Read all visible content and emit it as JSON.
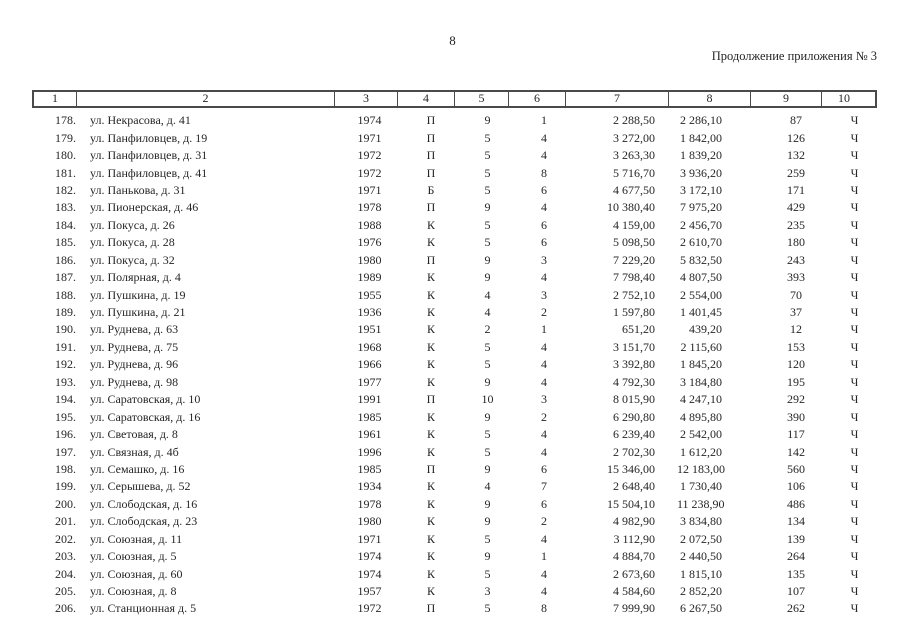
{
  "page": {
    "number": "8",
    "caption": "Продолжение приложения № 3"
  },
  "table": {
    "column_headers": [
      "1",
      "2",
      "3",
      "4",
      "5",
      "6",
      "7",
      "8",
      "9",
      "10"
    ],
    "rows": [
      [
        "178.",
        "ул. Некрасова, д. 41",
        "1974",
        "П",
        "9",
        "1",
        "2 288,50",
        "2 286,10",
        "87",
        "Ч"
      ],
      [
        "179.",
        "ул. Панфиловцев, д. 19",
        "1971",
        "П",
        "5",
        "4",
        "3 272,00",
        "1 842,00",
        "126",
        "Ч"
      ],
      [
        "180.",
        "ул. Панфиловцев, д. 31",
        "1972",
        "П",
        "5",
        "4",
        "3 263,30",
        "1 839,20",
        "132",
        "Ч"
      ],
      [
        "181.",
        "ул. Панфиловцев, д. 41",
        "1972",
        "П",
        "5",
        "8",
        "5 716,70",
        "3 936,20",
        "259",
        "Ч"
      ],
      [
        "182.",
        "ул. Панькова, д. 31",
        "1971",
        "Б",
        "5",
        "6",
        "4 677,50",
        "3 172,10",
        "171",
        "Ч"
      ],
      [
        "183.",
        "ул. Пионерская, д. 46",
        "1978",
        "П",
        "9",
        "4",
        "10 380,40",
        "7 975,20",
        "429",
        "Ч"
      ],
      [
        "184.",
        "ул. Покуса, д. 26",
        "1988",
        "К",
        "5",
        "6",
        "4 159,00",
        "2 456,70",
        "235",
        "Ч"
      ],
      [
        "185.",
        "ул. Покуса, д. 28",
        "1976",
        "К",
        "5",
        "6",
        "5 098,50",
        "2 610,70",
        "180",
        "Ч"
      ],
      [
        "186.",
        "ул. Покуса, д. 32",
        "1980",
        "П",
        "9",
        "3",
        "7 229,20",
        "5 832,50",
        "243",
        "Ч"
      ],
      [
        "187.",
        "ул. Полярная, д. 4",
        "1989",
        "К",
        "9",
        "4",
        "7 798,40",
        "4 807,50",
        "393",
        "Ч"
      ],
      [
        "188.",
        "ул. Пушкина, д. 19",
        "1955",
        "К",
        "4",
        "3",
        "2 752,10",
        "2 554,00",
        "70",
        "Ч"
      ],
      [
        "189.",
        "ул. Пушкина, д. 21",
        "1936",
        "К",
        "4",
        "2",
        "1 597,80",
        "1 401,45",
        "37",
        "Ч"
      ],
      [
        "190.",
        "ул. Руднева, д. 63",
        "1951",
        "К",
        "2",
        "1",
        "651,20",
        "439,20",
        "12",
        "Ч"
      ],
      [
        "191.",
        "ул. Руднева, д. 75",
        "1968",
        "К",
        "5",
        "4",
        "3 151,70",
        "2 115,60",
        "153",
        "Ч"
      ],
      [
        "192.",
        "ул. Руднева, д. 96",
        "1966",
        "К",
        "5",
        "4",
        "3 392,80",
        "1 845,20",
        "120",
        "Ч"
      ],
      [
        "193.",
        "ул. Руднева, д. 98",
        "1977",
        "К",
        "9",
        "4",
        "4 792,30",
        "3 184,80",
        "195",
        "Ч"
      ],
      [
        "194.",
        "ул. Саратовская, д. 10",
        "1991",
        "П",
        "10",
        "3",
        "8 015,90",
        "4 247,10",
        "292",
        "Ч"
      ],
      [
        "195.",
        "ул. Саратовская, д. 16",
        "1985",
        "К",
        "9",
        "2",
        "6 290,80",
        "4 895,80",
        "390",
        "Ч"
      ],
      [
        "196.",
        "ул. Световая, д. 8",
        "1961",
        "К",
        "5",
        "4",
        "6 239,40",
        "2 542,00",
        "117",
        "Ч"
      ],
      [
        "197.",
        "ул. Связная, д. 4б",
        "1996",
        "К",
        "5",
        "4",
        "2 702,30",
        "1 612,20",
        "142",
        "Ч"
      ],
      [
        "198.",
        "ул. Семашко, д. 16",
        "1985",
        "П",
        "9",
        "6",
        "15 346,00",
        "12 183,00",
        "560",
        "Ч"
      ],
      [
        "199.",
        "ул. Серышева, д. 52",
        "1934",
        "К",
        "4",
        "7",
        "2 648,40",
        "1 730,40",
        "106",
        "Ч"
      ],
      [
        "200.",
        "ул. Слободская, д. 16",
        "1978",
        "К",
        "9",
        "6",
        "15 504,10",
        "11 238,90",
        "486",
        "Ч"
      ],
      [
        "201.",
        "ул. Слободская, д. 23",
        "1980",
        "К",
        "9",
        "2",
        "4 982,90",
        "3 834,80",
        "134",
        "Ч"
      ],
      [
        "202.",
        "ул. Союзная, д. 11",
        "1971",
        "К",
        "5",
        "4",
        "3 112,90",
        "2 072,50",
        "139",
        "Ч"
      ],
      [
        "203.",
        "ул. Союзная, д. 5",
        "1974",
        "К",
        "9",
        "1",
        "4 884,70",
        "2 440,50",
        "264",
        "Ч"
      ],
      [
        "204.",
        "ул. Союзная, д. 60",
        "1974",
        "К",
        "5",
        "4",
        "2 673,60",
        "1 815,10",
        "135",
        "Ч"
      ],
      [
        "205.",
        "ул. Союзная, д. 8",
        "1957",
        "К",
        "3",
        "4",
        "4 584,60",
        "2 852,20",
        "107",
        "Ч"
      ],
      [
        "206.",
        "ул. Станционная д. 5",
        "1972",
        "П",
        "5",
        "8",
        "7 999,90",
        "6 267,50",
        "262",
        "Ч"
      ]
    ]
  }
}
